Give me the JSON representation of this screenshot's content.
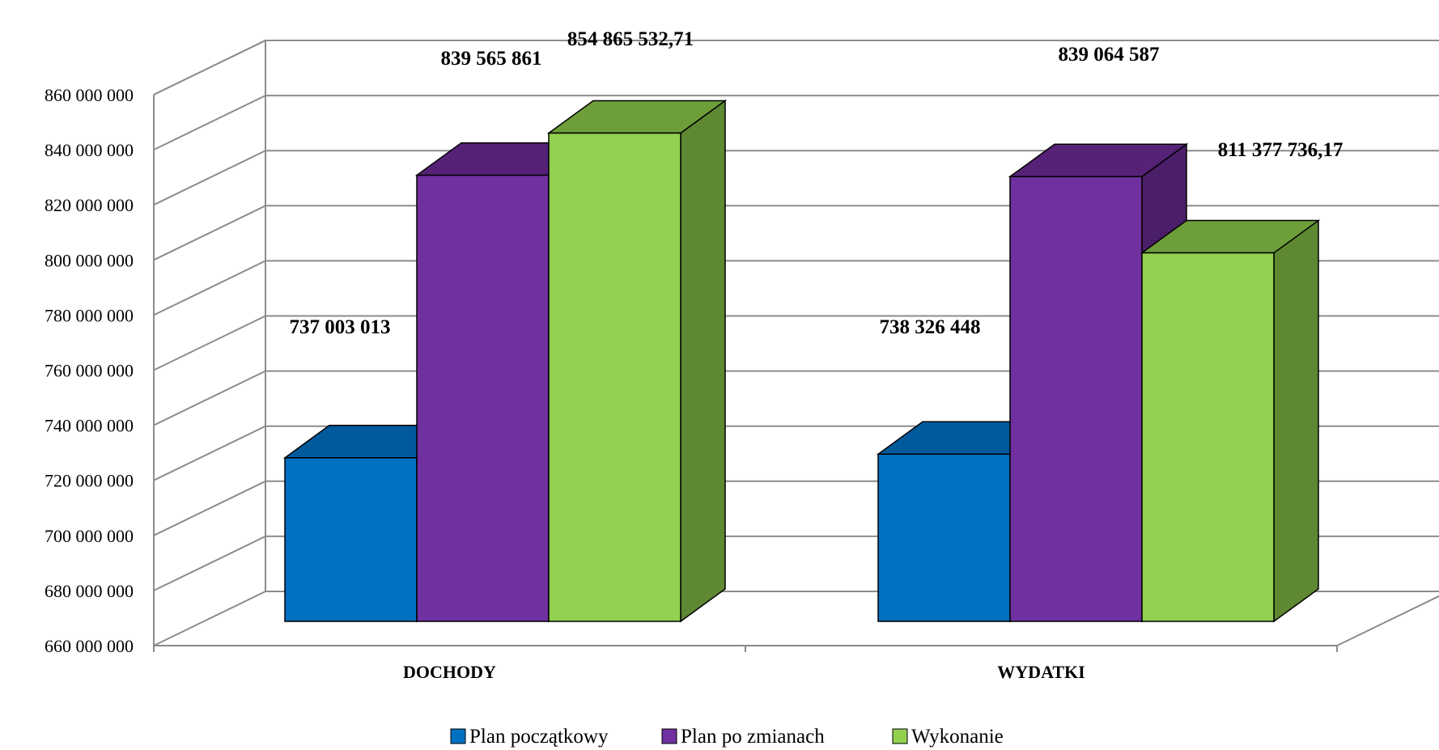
{
  "chart_data": {
    "type": "bar",
    "style": "3d-clustered-column",
    "categories": [
      "DOCHODY",
      "WYDATKI"
    ],
    "series": [
      {
        "name": "Plan początkowy",
        "values": [
          737003013,
          738326448
        ],
        "labels": [
          "737 003 013",
          "738 326 448"
        ],
        "color_front": "#0070C0",
        "color_top": "#005A9C",
        "color_side": "#004F88"
      },
      {
        "name": "Plan po zmianach",
        "values": [
          839565861,
          839064587
        ],
        "labels": [
          "839 565 861",
          "839 064 587"
        ],
        "color_front": "#7030A0",
        "color_top": "#552277",
        "color_side": "#4A1E69"
      },
      {
        "name": "Wykonanie",
        "values": [
          854865532.71,
          811377736.17
        ],
        "labels": [
          "854 865 532,71",
          "811 377 736,17"
        ],
        "color_front": "#92D050",
        "color_top": "#6E9E3A",
        "color_side": "#5E8832"
      }
    ],
    "ylim": [
      660000000,
      860000000
    ],
    "yticks": [
      660000000,
      680000000,
      700000000,
      720000000,
      740000000,
      760000000,
      780000000,
      800000000,
      820000000,
      840000000,
      860000000
    ],
    "ytick_labels": [
      "660 000 000",
      "680 000 000",
      "700 000 000",
      "720 000 000",
      "740 000 000",
      "760 000 000",
      "780 000 000",
      "800 000 000",
      "820 000 000",
      "840 000 000",
      "860 000 000"
    ],
    "grid": true,
    "legend": "bottom",
    "title": "",
    "xlabel": "",
    "ylabel": ""
  }
}
